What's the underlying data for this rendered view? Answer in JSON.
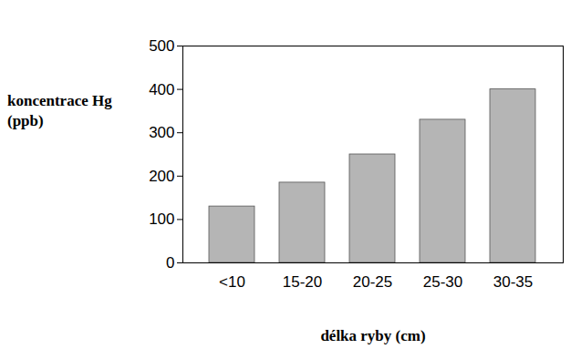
{
  "chart_data": {
    "type": "bar",
    "x_label": "délka ryby (cm)",
    "y_label": "koncentrace Hg (ppb)",
    "categories": [
      "<10",
      "15-20",
      "20-25",
      "25-30",
      "30-35"
    ],
    "values": [
      130,
      185,
      250,
      330,
      400
    ],
    "color": "#b5b5b5",
    "ylim": [
      0,
      500
    ],
    "yticks": [
      0,
      100,
      200,
      300,
      400,
      500
    ],
    "grid": false
  }
}
